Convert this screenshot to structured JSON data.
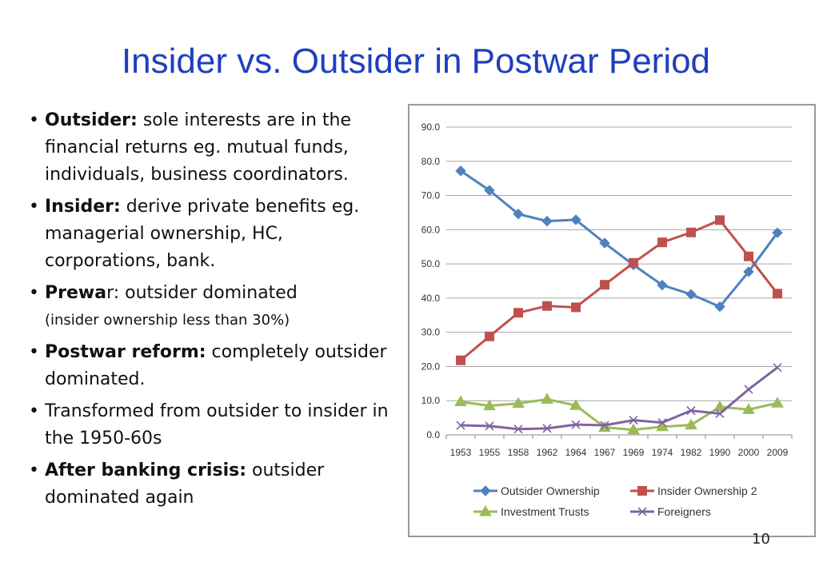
{
  "slide": {
    "title": "Insider vs. Outsider in Postwar Period",
    "page_number": "10"
  },
  "bullets": [
    {
      "bold": "Outsider:",
      "text": " sole interests are in the financial returns eg. mutual funds, individuals, business coordinators."
    },
    {
      "bold": "Insider:",
      "text": "  derive private benefits eg. managerial ownership, HC, corporations, bank."
    },
    {
      "bold": "Prewa",
      "text": "r: outsider dominated",
      "note": "(insider ownership less than 30%)"
    },
    {
      "bold": "Postwar reform:",
      "text": " completely outsider dominated."
    },
    {
      "bold": "",
      "text": "Transformed from outsider to insider in the 1950-60s"
    },
    {
      "bold": "After banking crisis:",
      "text": " outsider dominated again"
    }
  ],
  "chart_data": {
    "type": "line",
    "categories": [
      "1953",
      "1955",
      "1958",
      "1962",
      "1964",
      "1967",
      "1969",
      "1974",
      "1982",
      "1990",
      "2000",
      "2009"
    ],
    "y_ticks": [
      "0.0",
      "10.0",
      "20.0",
      "30.0",
      "40.0",
      "50.0",
      "60.0",
      "70.0",
      "80.0",
      "90.0"
    ],
    "ylim": [
      0,
      90
    ],
    "grid": true,
    "legend_position": "bottom",
    "series": [
      {
        "name": "Outsider Ownership",
        "color": "#4f81bd",
        "marker": "diamond",
        "values": [
          77.2,
          71.5,
          64.6,
          62.5,
          62.9,
          56.1,
          49.7,
          43.8,
          41.1,
          37.5,
          47.7,
          59.1
        ]
      },
      {
        "name": "Insider Ownership 2",
        "color": "#c0504d",
        "marker": "square",
        "values": [
          21.8,
          28.8,
          35.7,
          37.7,
          37.3,
          43.9,
          50.3,
          56.3,
          59.2,
          62.8,
          52.2,
          41.3
        ]
      },
      {
        "name": "Investment Trusts",
        "color": "#9bbb59",
        "marker": "triangle",
        "values": [
          9.7,
          8.5,
          9.2,
          10.4,
          8.6,
          2.2,
          1.5,
          2.4,
          2.9,
          8.2,
          7.4,
          9.3
        ]
      },
      {
        "name": "Foreigners",
        "color": "#8064a2",
        "marker": "x",
        "values": [
          2.8,
          2.6,
          1.7,
          1.9,
          3.0,
          2.8,
          4.3,
          3.6,
          7.1,
          6.2,
          13.3,
          19.7
        ]
      }
    ]
  }
}
